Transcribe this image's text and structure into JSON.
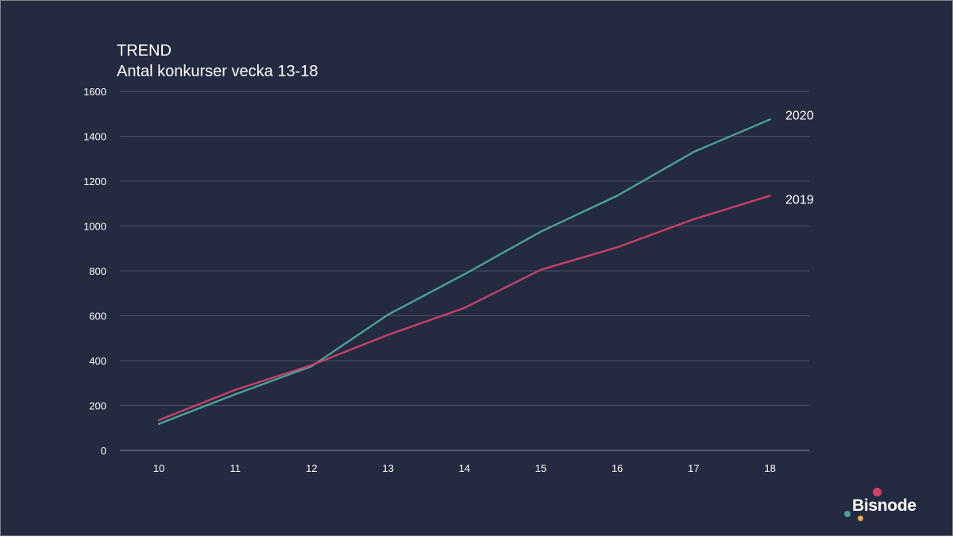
{
  "title_line1": "TREND",
  "title_line2": "Antal konkurser vecka 13-18",
  "logo": {
    "text": "Bisnode",
    "dot_colors": [
      "#d6416b",
      "#4aa39a",
      "#f2a94a"
    ]
  },
  "colors": {
    "background": "#242a40",
    "grid": "#4a5066",
    "axis": "#8a8fa0"
  },
  "chart_data": {
    "type": "line",
    "title": "TREND",
    "subtitle": "Antal konkurser vecka 13-18",
    "xlabel": "",
    "ylabel": "",
    "x": [
      10,
      11,
      12,
      13,
      14,
      15,
      16,
      17,
      18
    ],
    "ylim": [
      0,
      1600
    ],
    "yticks": [
      0,
      200,
      400,
      600,
      800,
      1000,
      1200,
      1400,
      1600
    ],
    "grid": true,
    "legend": "end-of-line labels",
    "series": [
      {
        "name": "2020",
        "color": "#4aa39a",
        "values": [
          118,
          250,
          375,
          605,
          785,
          975,
          1135,
          1330,
          1475
        ]
      },
      {
        "name": "2019",
        "color": "#c8406a",
        "values": [
          135,
          270,
          380,
          515,
          635,
          805,
          905,
          1030,
          1135
        ]
      }
    ]
  }
}
